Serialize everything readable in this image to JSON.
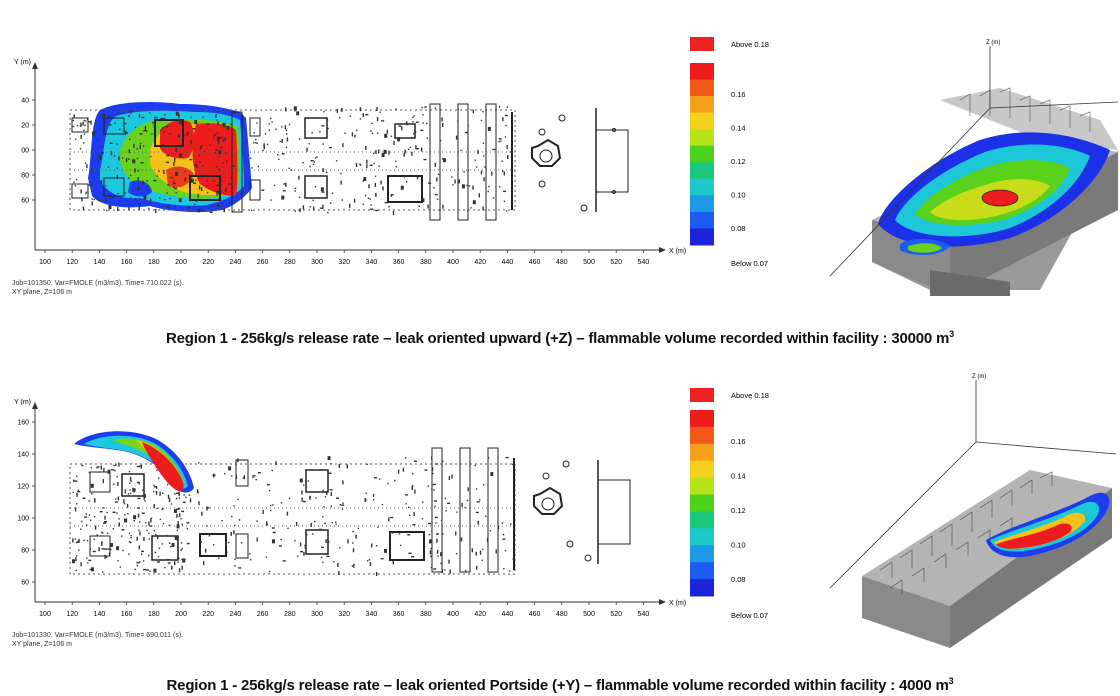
{
  "panels": [
    {
      "id": "upward",
      "axis": {
        "ylabel": "Y (m)",
        "xlabel": "X (m)",
        "xticks": [
          "100",
          "120",
          "140",
          "160",
          "180",
          "200",
          "220",
          "240",
          "260",
          "280",
          "300",
          "320",
          "340",
          "360",
          "380",
          "400",
          "420",
          "440",
          "460",
          "480",
          "500",
          "520",
          "540"
        ],
        "yticks": [
          "40",
          "20",
          "00",
          "80",
          "60"
        ]
      },
      "legend": {
        "above": "Above 0.18",
        "below": "Below 0.07",
        "ticks": [
          "0.16",
          "0.14",
          "0.12",
          "0.10",
          "0.08"
        ]
      },
      "meta_line1": "Job=101350.  Var=FMOLE (m3/m3).  Time= 710.022 (s).",
      "meta_line2": "XY plane, Z=106 m",
      "view3d_zlabel": "Z (m)",
      "caption": "Region 1 - 256kg/s release rate – leak oriented upward (+Z) – flammable volume recorded within facility : 30000 m",
      "caption_sup": "3"
    },
    {
      "id": "portside",
      "axis": {
        "ylabel": "Y (m)",
        "xlabel": "X (m)",
        "xticks": [
          "100",
          "120",
          "140",
          "160",
          "180",
          "200",
          "220",
          "240",
          "260",
          "280",
          "300",
          "320",
          "340",
          "360",
          "380",
          "400",
          "420",
          "440",
          "460",
          "480",
          "500",
          "520",
          "540"
        ],
        "yticks": [
          "160",
          "140",
          "120",
          "100",
          "80",
          "60"
        ]
      },
      "legend": {
        "above": "Above 0.18",
        "below": "Below 0.07",
        "ticks": [
          "0.16",
          "0.14",
          "0.12",
          "0.10",
          "0.08"
        ]
      },
      "meta_line1": "Job=101330.  Var=FMOLE (m3/m3).  Time= 690.011 (s).",
      "meta_line2": "XY plane, Z=106 m",
      "view3d_zlabel": "Z (m)",
      "caption": "Region 1 - 256kg/s release rate – leak oriented Portside (+Y) – flammable volume recorded within facility : 4000 m",
      "caption_sup": "3"
    }
  ],
  "colorscale": [
    "#ee1c1c",
    "#f25a1a",
    "#f6a01a",
    "#f4d21c",
    "#b6e21a",
    "#4cd21c",
    "#1cc97c",
    "#1cc8c8",
    "#1c9ae6",
    "#1c5cf0",
    "#1c24d8"
  ],
  "above_color": "#ee2020"
}
